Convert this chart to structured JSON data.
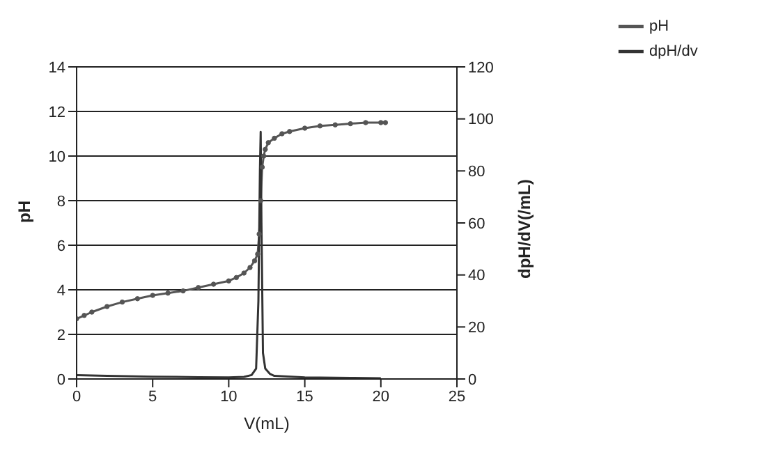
{
  "chart_data": {
    "type": "line",
    "xlabel": "V(mL)",
    "ylabel": "pH",
    "y2label": "dpH/dV(/mL)",
    "xlim": [
      0,
      25
    ],
    "xticks": [
      0,
      5,
      10,
      15,
      20,
      25
    ],
    "ylim": [
      0,
      14
    ],
    "yticks": [
      0,
      2,
      4,
      6,
      8,
      10,
      12,
      14
    ],
    "y2lim": [
      0,
      120
    ],
    "y2ticks": [
      0,
      20,
      40,
      60,
      80,
      100,
      120
    ],
    "grid": "y",
    "legend": "top right",
    "series": [
      {
        "name": "pH",
        "color": "#555555",
        "marker": "circle",
        "x": [
          0,
          0.5,
          1,
          2,
          3,
          4,
          5,
          6,
          7,
          8,
          9,
          10,
          10.5,
          11,
          11.4,
          11.7,
          11.9,
          12.0,
          12.1,
          12.2,
          12.3,
          12.4,
          12.6,
          13,
          13.5,
          14,
          15,
          16,
          17,
          18,
          19,
          20,
          20.3
        ],
        "values": [
          2.7,
          2.85,
          3.0,
          3.25,
          3.45,
          3.6,
          3.75,
          3.85,
          3.95,
          4.1,
          4.25,
          4.4,
          4.55,
          4.75,
          5.0,
          5.3,
          5.6,
          6.5,
          8.0,
          9.5,
          10.0,
          10.3,
          10.6,
          10.8,
          11.0,
          11.1,
          11.25,
          11.35,
          11.4,
          11.45,
          11.5,
          11.5,
          11.5
        ]
      },
      {
        "name": "dpH/dv",
        "color": "#333333",
        "marker": "none",
        "axis": "y2",
        "x": [
          0,
          2,
          5,
          8,
          10,
          11,
          11.5,
          11.8,
          11.95,
          12.05,
          12.1,
          12.15,
          12.25,
          12.4,
          12.7,
          13,
          15,
          18,
          20
        ],
        "values": [
          1.5,
          1.2,
          0.9,
          0.7,
          0.6,
          0.8,
          1.5,
          4,
          30,
          80,
          95,
          60,
          10,
          4,
          2,
          1.2,
          0.6,
          0.4,
          0.3
        ]
      }
    ]
  }
}
